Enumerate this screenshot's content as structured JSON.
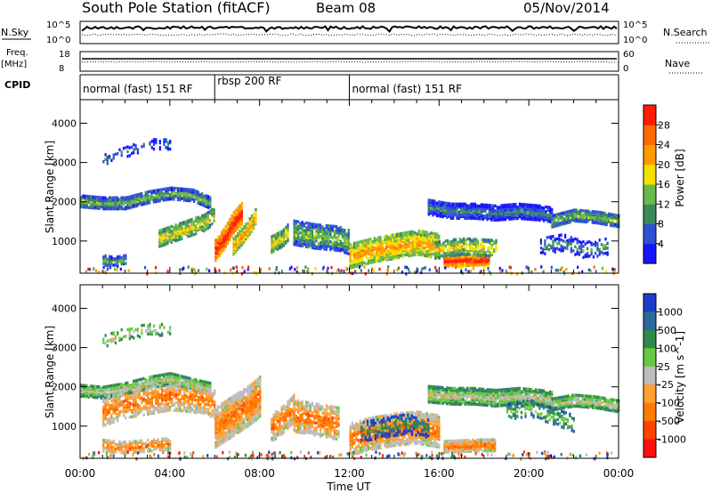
{
  "header": {
    "station_title": "South Pole Station (fitACF)",
    "beam": "Beam 08",
    "date": "05/Nov/2014"
  },
  "top_panels": {
    "nsky_label": "N.Sky",
    "nsky_ticks": [
      "10^5",
      "10^0"
    ],
    "nsearch_label": "N.Search",
    "nsearch_ticks": [
      "10^5",
      "10^0"
    ],
    "freq_label_1": "Freq.",
    "freq_label_2": "[MHz]",
    "freq_ticks": [
      "18",
      "8"
    ],
    "nave_label": "Nave",
    "nave_ticks": [
      "60",
      "0"
    ],
    "cpid_label": "CPID"
  },
  "cpid_segments": [
    {
      "label": "normal (fast) 151 RF",
      "start_hour": 0,
      "end_hour": 6
    },
    {
      "label": "rbsp 200 RF",
      "start_hour": 6,
      "end_hour": 12
    },
    {
      "label": "normal (fast) 151 RF",
      "start_hour": 12,
      "end_hour": 24
    }
  ],
  "chart_data": [
    {
      "type": "heatmap",
      "name": "power",
      "ylabel": "Slant Range [km]",
      "yticks": [
        1000,
        2000,
        3000,
        4000
      ],
      "ylim": [
        180,
        4600
      ],
      "xlim": [
        0,
        24
      ],
      "colorbar_label": "Power [dB]",
      "colorbar_ticks": [
        "4",
        "8",
        "12",
        "16",
        "20",
        "24",
        "28"
      ],
      "colorbar_colors": [
        "#1414ff",
        "#2e4fd6",
        "#3a8a5a",
        "#6ab84a",
        "#f5e000",
        "#ff9a00",
        "#ff6a00",
        "#ff1e00"
      ],
      "features": [
        {
          "x": [
            0.0,
            1.0,
            2.0,
            3.0,
            4.0,
            5.0,
            5.8
          ],
          "y": [
            2050,
            2000,
            2000,
            2150,
            2250,
            2200,
            2000
          ],
          "level": 3,
          "thickness": 140,
          "density": 0.85
        },
        {
          "x": [
            6.0,
            6.4,
            6.8,
            7.2
          ],
          "y": [
            800,
            1100,
            1500,
            1750
          ],
          "level": 7,
          "thickness": 260,
          "density": 0.95
        },
        {
          "x": [
            6.8,
            7.4,
            7.8
          ],
          "y": [
            900,
            1300,
            1650
          ],
          "level": 5,
          "thickness": 200,
          "density": 0.9
        },
        {
          "x": [
            3.5,
            4.5,
            5.5,
            6.0
          ],
          "y": [
            1100,
            1300,
            1500,
            1700
          ],
          "level": 4,
          "thickness": 200,
          "density": 0.8
        },
        {
          "x": [
            8.5,
            9.0,
            9.3
          ],
          "y": [
            950,
            1100,
            1300
          ],
          "level": 4,
          "thickness": 200,
          "density": 0.8
        },
        {
          "x": [
            9.5,
            10.5,
            11.5,
            12.0
          ],
          "y": [
            1250,
            1150,
            1100,
            1000
          ],
          "level": 3,
          "thickness": 300,
          "density": 0.7
        },
        {
          "x": [
            12.0,
            13.0,
            14.0,
            15.0,
            16.0
          ],
          "y": [
            650,
            800,
            900,
            1000,
            900
          ],
          "level": 5,
          "thickness": 300,
          "density": 0.8
        },
        {
          "x": [
            16.2,
            17.0,
            17.8,
            18.2
          ],
          "y": [
            520,
            540,
            560,
            560
          ],
          "level": 7,
          "thickness": 130,
          "density": 0.95
        },
        {
          "x": [
            15.8,
            17.0,
            18.5
          ],
          "y": [
            800,
            900,
            850
          ],
          "level": 4,
          "thickness": 200,
          "density": 0.6
        },
        {
          "x": [
            15.5,
            16.5,
            17.5,
            18.5,
            19.5,
            20.5,
            21.0
          ],
          "y": [
            1900,
            1800,
            1800,
            1750,
            1800,
            1750,
            1700
          ],
          "level": 2,
          "thickness": 180,
          "density": 0.85
        },
        {
          "x": [
            21.0,
            22.0,
            23.0,
            24.0
          ],
          "y": [
            1550,
            1700,
            1650,
            1550
          ],
          "level": 3,
          "thickness": 150,
          "density": 0.85
        },
        {
          "x": [
            20.5,
            21.5,
            22.5,
            23.5
          ],
          "y": [
            900,
            1000,
            800,
            900
          ],
          "level": 2,
          "thickness": 200,
          "density": 0.4
        },
        {
          "x": [
            1.0,
            1.5,
            2.0
          ],
          "y": [
            550,
            500,
            550
          ],
          "level": 3,
          "thickness": 120,
          "density": 0.6
        },
        {
          "x": [
            1.0,
            2.0,
            3.0,
            4.0
          ],
          "y": [
            3100,
            3300,
            3500,
            3500
          ],
          "level": 2,
          "thickness": 120,
          "density": 0.25
        }
      ]
    },
    {
      "type": "heatmap",
      "name": "velocity",
      "ylabel": "Slant Range [km]",
      "yticks": [
        1000,
        2000,
        3000,
        4000
      ],
      "ylim": [
        180,
        4600
      ],
      "xlim": [
        0,
        24
      ],
      "xticks": [
        "00:00",
        "04:00",
        "08:00",
        "12:00",
        "16:00",
        "20:00",
        "00:00"
      ],
      "xlabel": "Time UT",
      "colorbar_label": "Velocity [m s^-1]",
      "colorbar_ticks": [
        "1000",
        "500",
        "100",
        "25",
        "-25",
        "-100",
        "-500",
        "-1000"
      ],
      "colorbar_colors": [
        "#1e3cc8",
        "#2a6a9a",
        "#2e8a4a",
        "#66c840",
        "#bcbcbc",
        "#ffa030",
        "#ff7a00",
        "#ff4400",
        "#ff1010"
      ],
      "features": [
        {
          "x": [
            0.0,
            1.0,
            2.0,
            3.0,
            4.0,
            5.0,
            5.8
          ],
          "y": [
            1950,
            1900,
            2000,
            2150,
            2250,
            2100,
            2000
          ],
          "level": 4,
          "thickness": 150,
          "density": 0.85
        },
        {
          "x": [
            1.0,
            2.0,
            3.0,
            4.0,
            5.0,
            6.0
          ],
          "y": [
            1400,
            1600,
            1700,
            1800,
            1750,
            1600
          ],
          "level": 6,
          "thickness": 350,
          "density": 0.55
        },
        {
          "x": [
            6.0,
            6.8,
            7.6,
            8.0
          ],
          "y": [
            1000,
            1300,
            1600,
            1800
          ],
          "level": 6,
          "thickness": 500,
          "density": 0.85
        },
        {
          "x": [
            8.5,
            9.0,
            9.5
          ],
          "y": [
            1000,
            1200,
            1500
          ],
          "level": 6,
          "thickness": 350,
          "density": 0.7
        },
        {
          "x": [
            9.5,
            10.5,
            11.5
          ],
          "y": [
            1300,
            1200,
            1100
          ],
          "level": 6,
          "thickness": 400,
          "density": 0.6
        },
        {
          "x": [
            12.0,
            13.0,
            14.0,
            15.0,
            16.0
          ],
          "y": [
            700,
            850,
            950,
            1000,
            900
          ],
          "level": 6,
          "thickness": 400,
          "density": 0.75
        },
        {
          "x": [
            12.5,
            13.5,
            14.5,
            15.5
          ],
          "y": [
            900,
            1000,
            1100,
            1000
          ],
          "level": 2,
          "thickness": 250,
          "density": 0.35
        },
        {
          "x": [
            16.2,
            17.0,
            17.8,
            18.5
          ],
          "y": [
            520,
            540,
            560,
            560
          ],
          "level": 6,
          "thickness": 150,
          "density": 0.9
        },
        {
          "x": [
            15.5,
            16.5,
            17.5,
            18.5,
            19.5,
            20.5,
            21.0
          ],
          "y": [
            1850,
            1800,
            1800,
            1750,
            1800,
            1750,
            1700
          ],
          "level": 4,
          "thickness": 200,
          "density": 0.85
        },
        {
          "x": [
            21.0,
            22.0,
            23.0,
            24.0
          ],
          "y": [
            1600,
            1700,
            1650,
            1550
          ],
          "level": 4,
          "thickness": 150,
          "density": 0.85
        },
        {
          "x": [
            19.0,
            20.0,
            21.0,
            22.0
          ],
          "y": [
            1400,
            1500,
            1300,
            1100
          ],
          "level": 3,
          "thickness": 200,
          "density": 0.4
        },
        {
          "x": [
            1.0,
            2.0,
            3.0,
            4.0
          ],
          "y": [
            550,
            500,
            550,
            600
          ],
          "level": 6,
          "thickness": 150,
          "density": 0.6
        },
        {
          "x": [
            1.0,
            2.0,
            3.0,
            4.0
          ],
          "y": [
            3200,
            3400,
            3500,
            3500
          ],
          "level": 4,
          "thickness": 150,
          "density": 0.25
        }
      ]
    }
  ]
}
